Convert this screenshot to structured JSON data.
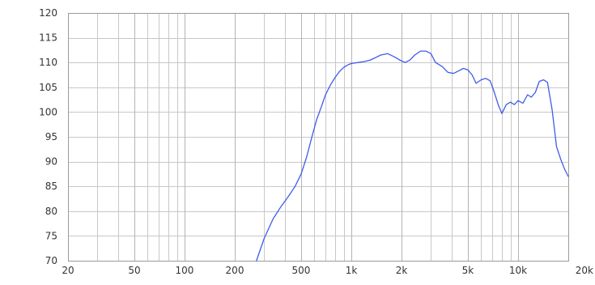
{
  "chart_data": {
    "type": "line",
    "title": "",
    "xlabel": "",
    "ylabel": "",
    "x_scale": "log",
    "xlim": [
      20,
      20000
    ],
    "ylim": [
      70,
      120
    ],
    "grid": true,
    "x_ticks": [
      20,
      50,
      100,
      200,
      500,
      1000,
      2000,
      5000,
      10000,
      20000
    ],
    "x_tick_labels": [
      "20",
      "50",
      "100",
      "200",
      "500",
      "1k",
      "2k",
      "5k",
      "10k",
      "20k"
    ],
    "x_minor_gridlines": [
      30,
      40,
      60,
      70,
      80,
      90,
      300,
      400,
      600,
      700,
      800,
      900,
      3000,
      4000,
      6000,
      7000,
      8000,
      9000
    ],
    "y_ticks": [
      70,
      75,
      80,
      85,
      90,
      95,
      100,
      105,
      110,
      115,
      120
    ],
    "y_tick_labels": [
      "70",
      "75",
      "80",
      "85",
      "90",
      "95",
      "100",
      "105",
      "110",
      "115",
      "120"
    ],
    "line_color": "#3f5bea",
    "series": [
      {
        "x": [
          270,
          300,
          340,
          380,
          420,
          460,
          500,
          540,
          580,
          620,
          660,
          700,
          750,
          800,
          850,
          900,
          950,
          1000,
          1100,
          1200,
          1300,
          1400,
          1500,
          1650,
          1800,
          1950,
          2100,
          2250,
          2400,
          2600,
          2800,
          3000,
          3200,
          3500,
          3800,
          4100,
          4400,
          4700,
          5000,
          5300,
          5600,
          6000,
          6400,
          6800,
          7200,
          7600,
          8000,
          8500,
          9000,
          9500,
          10000,
          10700,
          11400,
          12000,
          12700,
          13400,
          14200,
          15000,
          16000,
          17000,
          18000,
          19000,
          20000
        ],
        "y": [
          70.0,
          74.5,
          78.5,
          81.0,
          83.0,
          85.0,
          87.5,
          91.0,
          95.0,
          98.5,
          101.0,
          103.5,
          105.5,
          107.0,
          108.2,
          109.0,
          109.5,
          109.8,
          110.0,
          110.2,
          110.5,
          111.0,
          111.5,
          111.8,
          111.2,
          110.5,
          110.0,
          110.5,
          111.5,
          112.3,
          112.3,
          111.8,
          110.0,
          109.2,
          108.0,
          107.8,
          108.3,
          108.8,
          108.5,
          107.5,
          105.8,
          106.5,
          106.8,
          106.3,
          104.0,
          101.5,
          99.7,
          101.5,
          102.0,
          101.5,
          102.3,
          101.8,
          103.5,
          103.0,
          104.0,
          106.2,
          106.5,
          106.0,
          100.5,
          93.0,
          90.5,
          88.5,
          87.0
        ]
      }
    ]
  }
}
